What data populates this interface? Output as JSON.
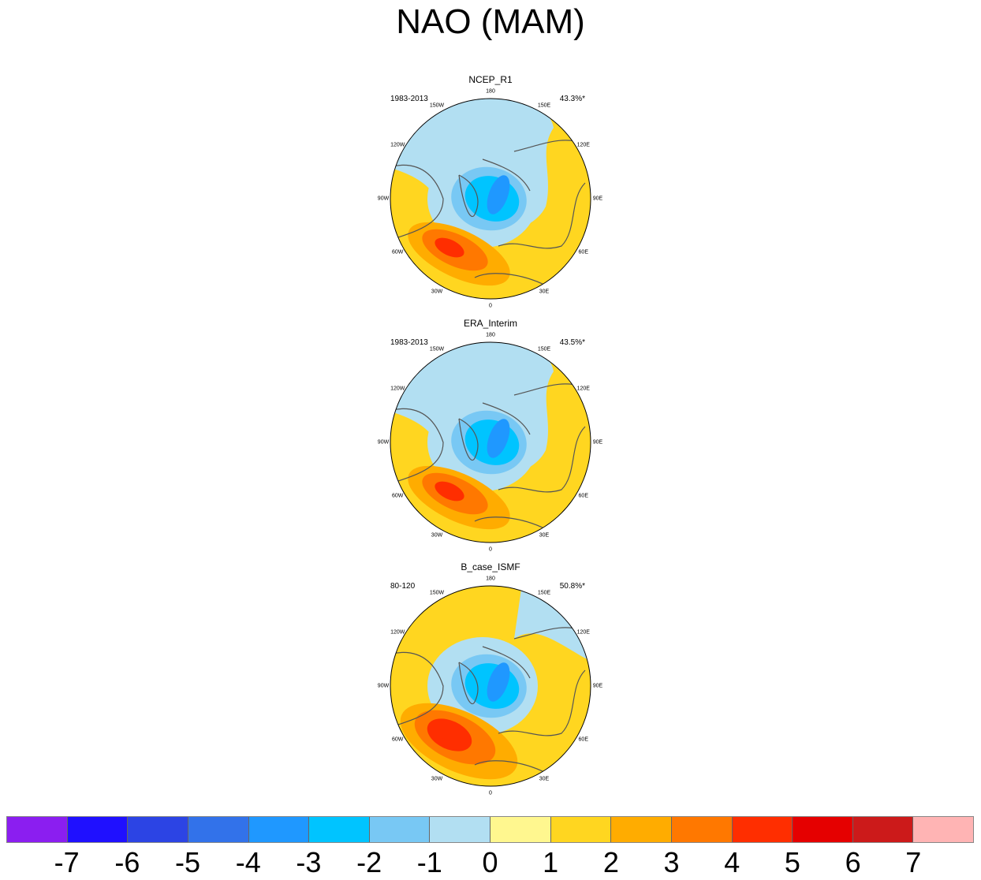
{
  "title": "NAO (MAM)",
  "chart_data": [
    {
      "type": "polar-contour-map",
      "title": "NCEP_R1",
      "period": "1983-2013",
      "variance_explained": "43.3%*",
      "longitude_labels": [
        "180",
        "150E",
        "120E",
        "90E",
        "60E",
        "30E",
        "0",
        "30W",
        "60W",
        "90W",
        "120W",
        "150W"
      ],
      "pattern": {
        "negative_center_min": -3,
        "positive_center_max": 3
      }
    },
    {
      "type": "polar-contour-map",
      "title": "ERA_Interim",
      "period": "1983-2013",
      "variance_explained": "43.5%*",
      "longitude_labels": [
        "180",
        "150E",
        "120E",
        "90E",
        "60E",
        "30E",
        "0",
        "30W",
        "60W",
        "90W",
        "120W",
        "150W"
      ],
      "pattern": {
        "negative_center_min": -3,
        "positive_center_max": 3
      }
    },
    {
      "type": "polar-contour-map",
      "title": "B_case_ISMF",
      "period": "80-120",
      "variance_explained": "50.8%*",
      "longitude_labels": [
        "180",
        "150E",
        "120E",
        "90E",
        "60E",
        "30E",
        "0",
        "30W",
        "60W",
        "90W",
        "120W",
        "150W"
      ],
      "pattern": {
        "negative_center_min": -3,
        "positive_center_max": 4
      }
    }
  ],
  "colorbar": {
    "labels": [
      "-7",
      "-6",
      "-5",
      "-4",
      "-3",
      "-2",
      "-1",
      "0",
      "1",
      "2",
      "3",
      "4",
      "5",
      "6",
      "7"
    ],
    "colors": [
      "#8b1ef0",
      "#1f10ff",
      "#2c44e4",
      "#3272ea",
      "#1f98ff",
      "#00c4ff",
      "#78c8f4",
      "#b2dff2",
      "#fff78f",
      "#ffd620",
      "#ffac00",
      "#ff7800",
      "#ff2e00",
      "#e50000",
      "#cc1a1a",
      "#ffb4b4"
    ]
  }
}
